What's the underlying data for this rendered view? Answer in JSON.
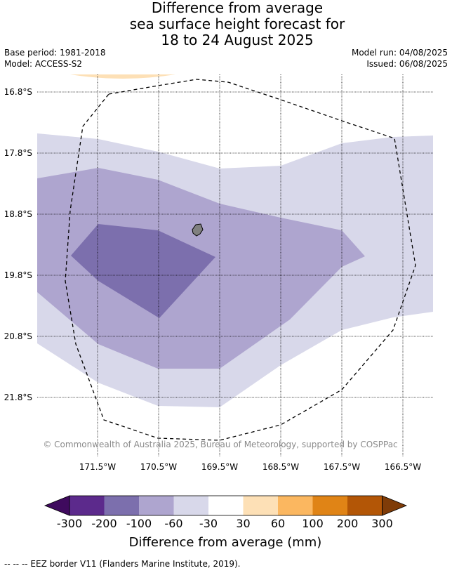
{
  "title": {
    "line1": "Difference from average",
    "line2": "sea surface height forecast for",
    "line3": "18 to 24 August 2025"
  },
  "meta": {
    "base_period": "Base period: 1981-2018",
    "model": "Model: ACCESS-S2",
    "model_run": "Model run: 04/08/2025",
    "issued": "Issued: 06/08/2025"
  },
  "map": {
    "lat_labels": [
      "16.8°S",
      "17.8°S",
      "18.8°S",
      "19.8°S",
      "20.8°S",
      "21.8°S"
    ],
    "lon_labels": [
      "171.5°W",
      "170.5°W",
      "169.5°W",
      "168.5°W",
      "167.5°W",
      "166.5°W"
    ],
    "copyright": "© Commonwealth of Australia 2025, Bureau of Meteorology, supported by COSPPac"
  },
  "colorbar": {
    "title": "Difference from average (mm)",
    "tick_labels": [
      "-300",
      "-200",
      "-100",
      "-60",
      "-30",
      "30",
      "60",
      "100",
      "200",
      "300"
    ],
    "colors": [
      "#3f0a5e",
      "#5c2a8c",
      "#7c6fad",
      "#aea5cf",
      "#d8d8ea",
      "#ffffff",
      "#fde0b6",
      "#fbb760",
      "#e08416",
      "#b35606",
      "#7f3c08"
    ]
  },
  "footnote": "--  --  -- EEZ border V11 (Flanders Marine Institute, 2019)."
}
